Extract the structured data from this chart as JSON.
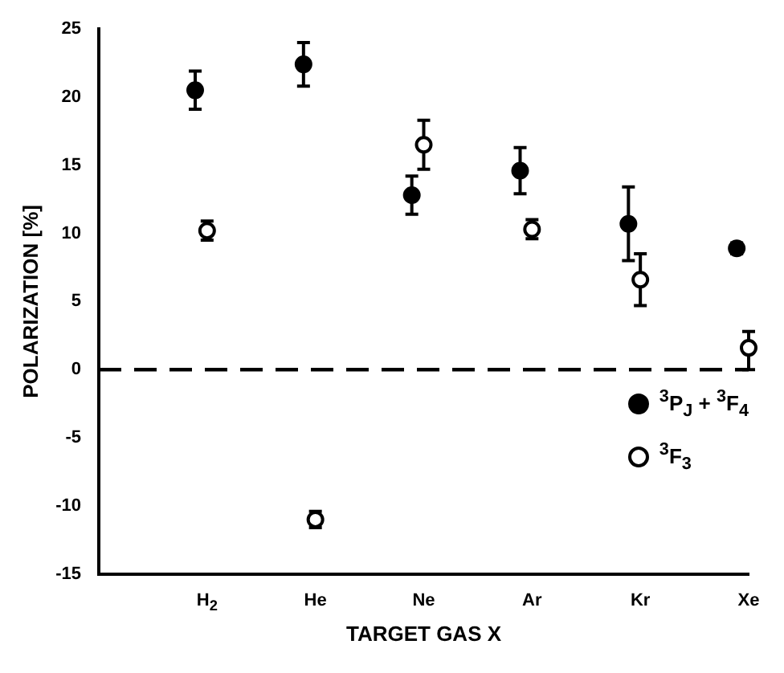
{
  "chart_data": {
    "type": "scatter",
    "xlabel": "TARGET GAS X",
    "ylabel": "POLARIZATION [%]",
    "categories": [
      "H$_{2}$",
      "He",
      "Ne",
      "Ar",
      "Kr",
      "Xe"
    ],
    "series": [
      {
        "name": "$^{3}$P$_{J}$ + $^{3}$F$_{4}$",
        "color": "#000000",
        "values": [
          20.5,
          22.4,
          12.8,
          14.6,
          10.7,
          8.9
        ],
        "errors": [
          1.4,
          1.6,
          1.4,
          1.7,
          2.7,
          0.4
        ]
      },
      {
        "name": "$^{3}$F$_{3}$",
        "color": "#000000",
        "values": [
          10.2,
          -11,
          16.5,
          10.3,
          6.6,
          1.6
        ],
        "errors": [
          0.7,
          0.6,
          1.8,
          0.7,
          1.9,
          [
            0,
            2.8
          ]
        ]
      }
    ],
    "ylim": [
      -15,
      25
    ],
    "yticks": [
      -15,
      -10,
      -5,
      0,
      5,
      10,
      15,
      20,
      25
    ],
    "ref_lines": [
      {
        "axis": "y",
        "value": 0,
        "line_style": "dashed",
        "color": "#000000"
      }
    ],
    "marker": "circle",
    "grid": false,
    "legend": "bottom right"
  }
}
